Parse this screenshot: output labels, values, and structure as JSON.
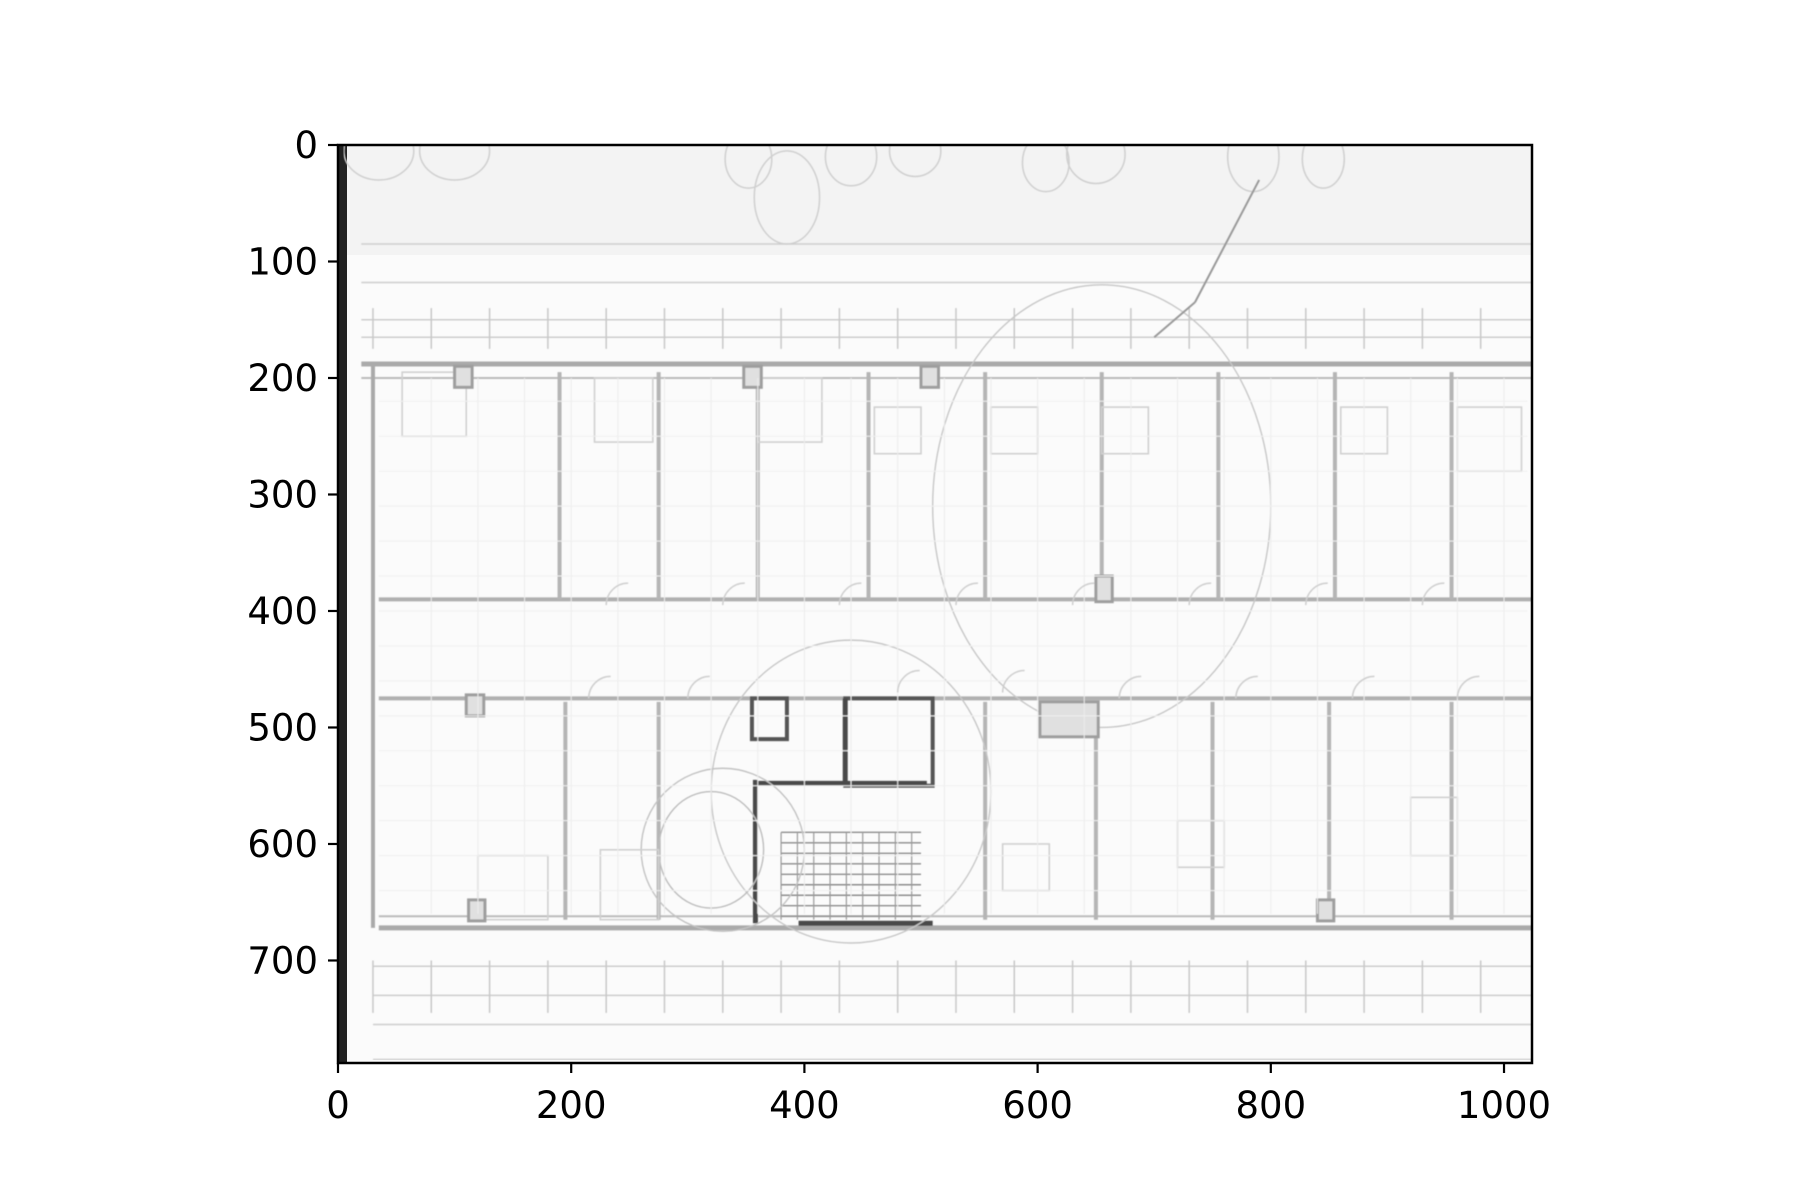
{
  "figure": {
    "x_axis": {
      "range": [
        0,
        1024
      ],
      "ticks": [
        0,
        200,
        400,
        600,
        800,
        1000
      ]
    },
    "y_axis": {
      "range": [
        0,
        788
      ],
      "inverted": true,
      "ticks": [
        0,
        100,
        200,
        300,
        400,
        500,
        600,
        700
      ]
    },
    "image_content": "floor-plan-drawing"
  }
}
